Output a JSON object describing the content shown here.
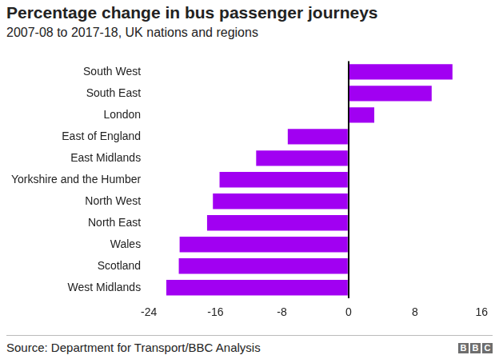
{
  "chart_data": {
    "type": "bar",
    "orientation": "horizontal",
    "title": "Percentage change in bus passenger journeys",
    "subtitle": "2007-08 to 2017-18, UK nations and regions",
    "categories": [
      "South West",
      "South East",
      "London",
      "East of England",
      "East Midlands",
      "Yorkshire and the Humber",
      "North West",
      "North East",
      "Wales",
      "Scotland",
      "West Midlands"
    ],
    "values": [
      12.5,
      10,
      3.1,
      -7.3,
      -11.1,
      -15.5,
      -16.3,
      -17,
      -20.3,
      -20.4,
      -21.9
    ],
    "color": "#a100f2",
    "xlim": [
      -24,
      16
    ],
    "xticks": [
      -24,
      -16,
      -8,
      0,
      8,
      16
    ],
    "grid": false,
    "source": "Source: Department for Transport/BBC Analysis",
    "logo": "BBC"
  }
}
